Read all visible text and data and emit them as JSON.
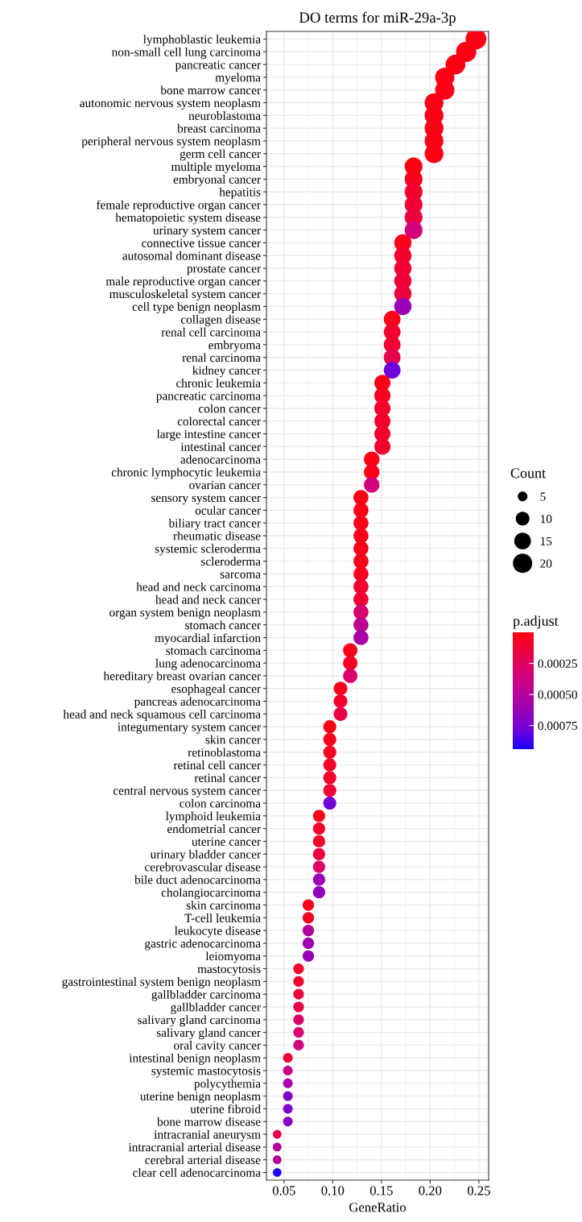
{
  "chart_data": {
    "type": "bubble",
    "title": "DO terms for miR-29a-3p",
    "xlabel": "GeneRatio",
    "orientation": "horizontal",
    "categories": [
      "lymphoblastic leukemia",
      "non-small cell lung carcinoma",
      "pancreatic cancer",
      "myeloma",
      "bone marrow cancer",
      "autonomic nervous system neoplasm",
      "neuroblastoma",
      "breast carcinoma",
      "peripheral nervous system neoplasm",
      "germ cell cancer",
      "multiple myeloma",
      "embryonal cancer",
      "hepatitis",
      "female reproductive organ cancer",
      "hematopoietic system disease",
      "urinary system cancer",
      "connective tissue cancer",
      "autosomal dominant disease",
      "prostate cancer",
      "male reproductive organ cancer",
      "musculoskeletal system cancer",
      "cell type benign neoplasm",
      "collagen disease",
      "renal cell carcinoma",
      "embryoma",
      "renal carcinoma",
      "kidney cancer",
      "chronic leukemia",
      "pancreatic carcinoma",
      "colon cancer",
      "colorectal cancer",
      "large intestine cancer",
      "intestinal cancer",
      "adenocarcinoma",
      "chronic lymphocytic leukemia",
      "ovarian cancer",
      "sensory system cancer",
      "ocular cancer",
      "biliary tract cancer",
      "rheumatic disease",
      "systemic scleroderma",
      "scleroderma",
      "sarcoma",
      "head and neck carcinoma",
      "head and neck cancer",
      "organ system benign neoplasm",
      "stomach cancer",
      "myocardial infarction",
      "stomach carcinoma",
      "lung adenocarcinoma",
      "hereditary breast ovarian cancer",
      "esophageal cancer",
      "pancreas adenocarcinoma",
      "head and neck squamous cell carcinoma",
      "integumentary system cancer",
      "skin cancer",
      "retinoblastoma",
      "retinal cell cancer",
      "retinal cancer",
      "central nervous system cancer",
      "colon carcinoma",
      "lymphoid leukemia",
      "endometrial cancer",
      "uterine cancer",
      "urinary bladder cancer",
      "cerebrovascular disease",
      "bile duct adenocarcinoma",
      "cholangiocarcinoma",
      "skin carcinoma",
      "T-cell leukemia",
      "leukocyte disease",
      "gastric adenocarcinoma",
      "leiomyoma",
      "mastocytosis",
      "gastrointestinal system benign neoplasm",
      "gallbladder carcinoma",
      "gallbladder cancer",
      "salivary gland carcinoma",
      "salivary gland cancer",
      "oral cavity cancer",
      "intestinal benign neoplasm",
      "systemic mastocytosis",
      "polycythemia",
      "uterine benign neoplasm",
      "uterine fibroid",
      "bone marrow disease",
      "intracranial aneurysm",
      "intracranial arterial disease",
      "cerebral arterial disease",
      "clear cell adenocarcinoma"
    ],
    "values": [
      0.247,
      0.237,
      0.226,
      0.215,
      0.215,
      0.204,
      0.204,
      0.204,
      0.204,
      0.204,
      0.183,
      0.183,
      0.183,
      0.183,
      0.183,
      0.183,
      0.172,
      0.172,
      0.172,
      0.172,
      0.172,
      0.172,
      0.161,
      0.161,
      0.161,
      0.161,
      0.161,
      0.151,
      0.151,
      0.151,
      0.151,
      0.151,
      0.151,
      0.14,
      0.14,
      0.14,
      0.129,
      0.129,
      0.129,
      0.129,
      0.129,
      0.129,
      0.129,
      0.129,
      0.129,
      0.129,
      0.129,
      0.129,
      0.118,
      0.118,
      0.118,
      0.108,
      0.108,
      0.108,
      0.097,
      0.097,
      0.097,
      0.097,
      0.097,
      0.097,
      0.097,
      0.086,
      0.086,
      0.086,
      0.086,
      0.086,
      0.086,
      0.086,
      0.075,
      0.075,
      0.075,
      0.075,
      0.075,
      0.065,
      0.065,
      0.065,
      0.065,
      0.065,
      0.065,
      0.065,
      0.054,
      0.054,
      0.054,
      0.054,
      0.054,
      0.054,
      0.043,
      0.043,
      0.043,
      0.043
    ],
    "sizes": [
      23,
      22,
      21,
      20,
      20,
      19,
      19,
      19,
      19,
      19,
      17,
      17,
      17,
      17,
      17,
      17,
      16,
      16,
      16,
      16,
      16,
      16,
      15,
      15,
      15,
      15,
      15,
      14,
      14,
      14,
      14,
      14,
      14,
      13,
      13,
      13,
      12,
      12,
      12,
      12,
      12,
      12,
      12,
      12,
      12,
      12,
      12,
      12,
      11,
      11,
      11,
      10,
      10,
      10,
      9,
      9,
      9,
      9,
      9,
      9,
      9,
      8,
      8,
      8,
      8,
      8,
      8,
      8,
      7,
      7,
      7,
      7,
      7,
      6,
      6,
      6,
      6,
      6,
      6,
      6,
      5,
      5,
      5,
      5,
      5,
      5,
      4,
      4,
      4,
      4
    ],
    "cvalues": [
      2e-05,
      2e-05,
      2e-05,
      2e-05,
      2e-05,
      2e-05,
      2e-05,
      2e-05,
      2e-05,
      2e-05,
      2e-05,
      5e-05,
      0.0001,
      0.00012,
      0.00015,
      0.00035,
      3e-05,
      0.0001,
      0.00012,
      0.00013,
      0.00015,
      0.00062,
      3e-05,
      0.0001,
      0.00012,
      0.0002,
      0.00078,
      2e-05,
      5e-05,
      8e-05,
      8e-05,
      9e-05,
      0.0001,
      2e-05,
      3e-05,
      0.00035,
      2e-05,
      2e-05,
      3e-05,
      3e-05,
      4e-05,
      4e-05,
      5e-05,
      0.0001,
      0.00012,
      0.0003,
      0.00045,
      0.00055,
      5e-05,
      7e-05,
      0.0003,
      4e-05,
      0.0001,
      0.00018,
      2e-05,
      4e-05,
      6e-05,
      8e-05,
      0.0001,
      0.00012,
      0.00078,
      3e-05,
      9e-05,
      0.0001,
      0.00015,
      0.00028,
      0.00062,
      0.00065,
      4e-05,
      6e-05,
      0.0005,
      0.0006,
      0.00063,
      8e-05,
      0.0001,
      0.00015,
      0.00018,
      0.00028,
      0.0003,
      0.00035,
      0.00015,
      0.0004,
      0.00058,
      0.0007,
      0.00072,
      0.00068,
      0.0002,
      0.0005,
      0.0005,
      0.00093
    ],
    "legend_title": "Count",
    "size_legend": [
      5,
      10,
      15,
      20
    ],
    "clabel": "p.adjust",
    "clim": [
      0.0,
      0.00094
    ],
    "cticks": [
      {
        "value": 0.00025,
        "label": "0.00025"
      },
      {
        "value": 0.0005,
        "label": "0.00050"
      },
      {
        "value": 0.00075,
        "label": "0.00075"
      }
    ],
    "xlim": [
      0.032,
      0.26
    ],
    "xticks": [
      {
        "value": 0.05,
        "label": "0.05"
      },
      {
        "value": 0.1,
        "label": "0.10"
      },
      {
        "value": 0.15,
        "label": "0.15"
      },
      {
        "value": 0.2,
        "label": "0.20"
      },
      {
        "value": 0.25,
        "label": "0.25"
      }
    ],
    "grid": true
  }
}
